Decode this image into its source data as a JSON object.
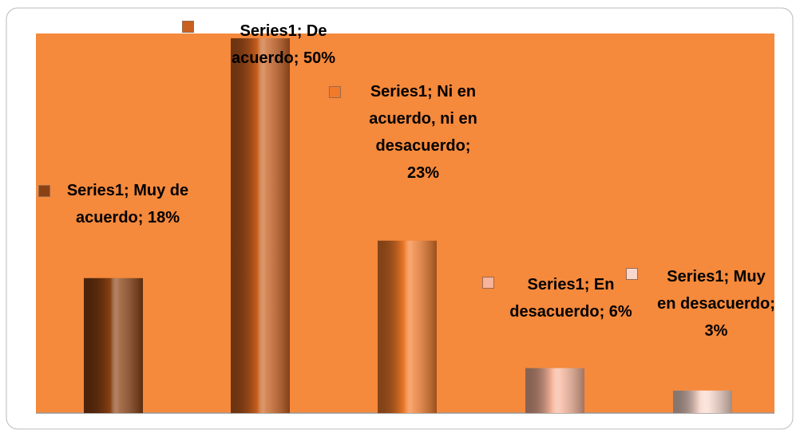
{
  "chart_data": {
    "type": "bar",
    "values": [
      18,
      50,
      23,
      6,
      3
    ],
    "value_labels": [
      "Series1; Muy de acuerdo; 18%",
      "Series1; De acuerdo; 50%",
      "Series1; Ni en acuerdo, ni en desacuerdo; 23%",
      "Series1; En desacuerdo; 6%",
      "Series1; Muy en desacuerdo; 3%"
    ],
    "colors": [
      "#8a4114",
      "#c9601f",
      "#f07a2a",
      "#f6b49a",
      "#f8d8cc"
    ],
    "background": "#f5893c"
  }
}
